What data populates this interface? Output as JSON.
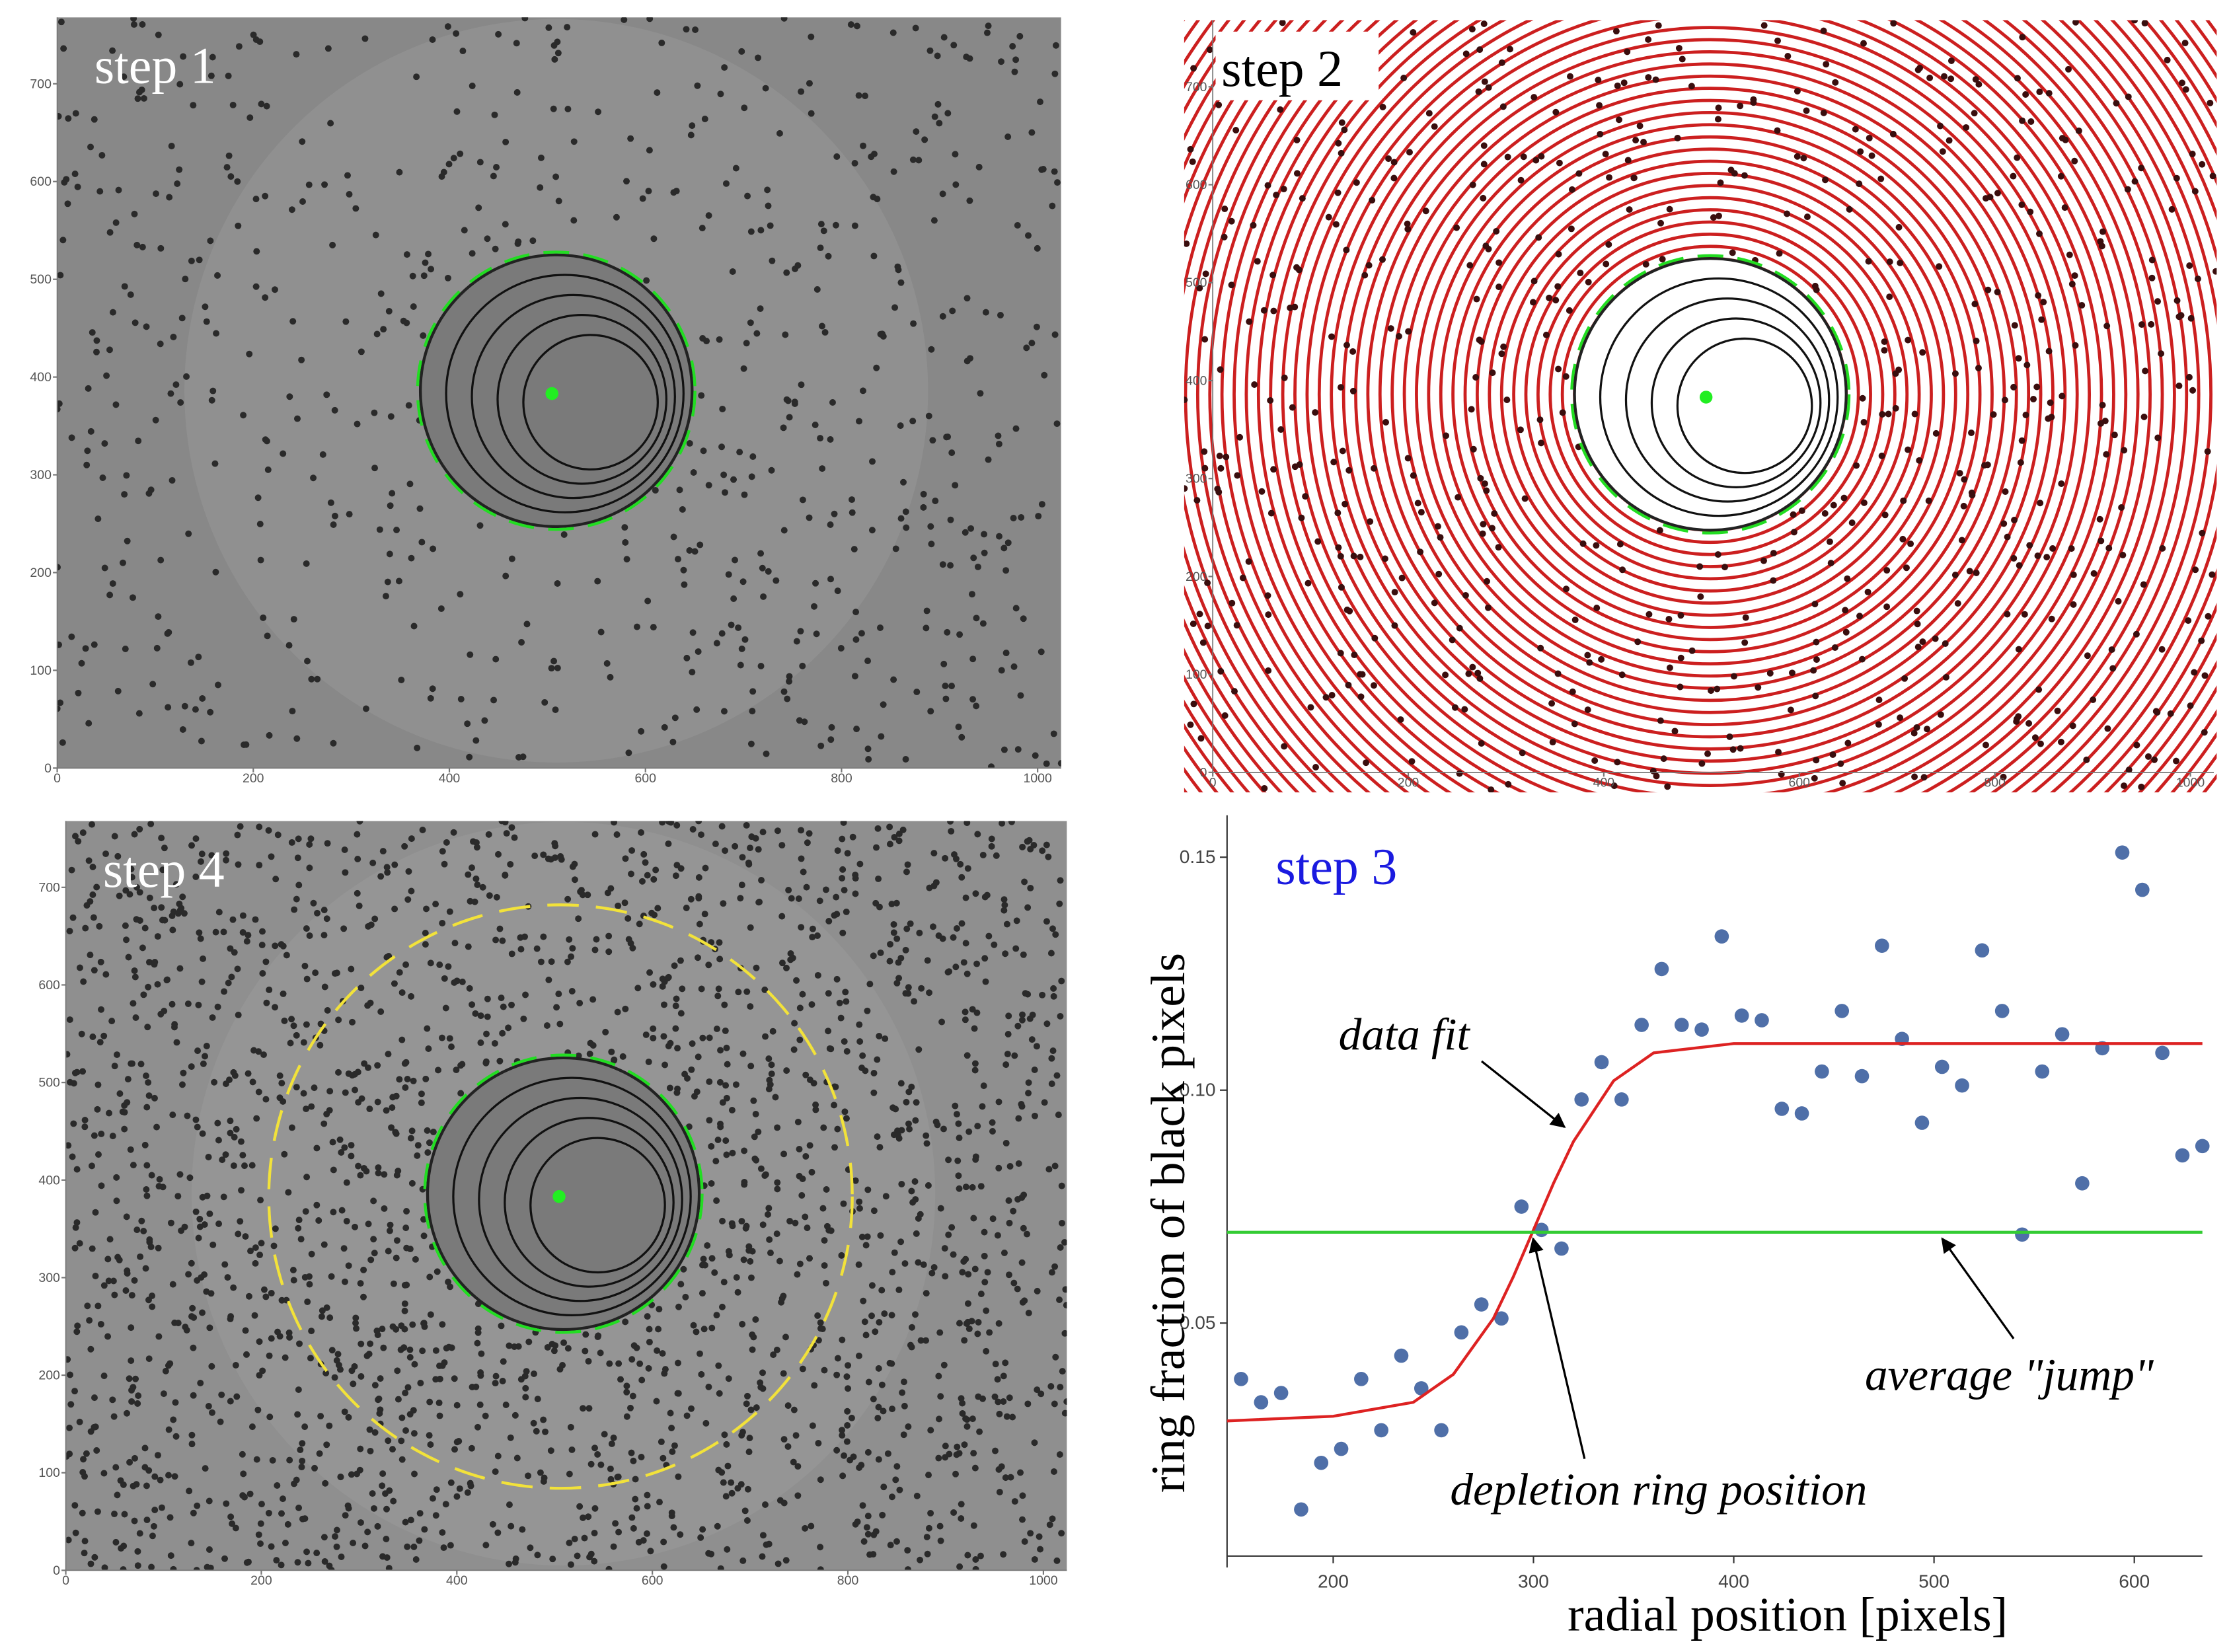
{
  "chart_data": [
    {
      "type": "image",
      "title": "step 1",
      "xlim": [
        0,
        1024
      ],
      "ylim": [
        0,
        768
      ],
      "xticks": [
        0,
        200,
        400,
        600,
        800,
        1000
      ],
      "yticks": [
        0,
        100,
        200,
        300,
        400,
        500,
        600,
        700
      ]
    },
    {
      "type": "image",
      "title": "step 2",
      "xlim": [
        0,
        1024
      ],
      "ylim": [
        0,
        768
      ],
      "xticks": [
        0,
        200,
        400,
        600,
        800,
        1000
      ],
      "yticks": [
        0,
        100,
        200,
        300,
        400,
        500,
        600,
        700
      ]
    },
    {
      "type": "scatter",
      "title": "step 3",
      "x_label": "radial position [pixels]",
      "y_label": "ring fraction of black pixels",
      "xlim": [
        147,
        634
      ],
      "ylim": [
        0,
        0.159
      ],
      "xticks": [
        200,
        300,
        400,
        500,
        600
      ],
      "yticks": [
        0.05,
        {
          "value": 0.1,
          "label": "0.10"
        },
        0.15
      ],
      "series": [
        {
          "type": "scatter",
          "color": "#4f6fa8",
          "x": [
            154,
            164,
            174,
            184,
            194,
            204,
            214,
            224,
            234,
            244,
            254,
            264,
            274,
            284,
            294,
            304,
            314,
            324,
            334,
            344,
            354,
            364,
            374,
            384,
            394,
            404,
            414,
            424,
            434,
            444,
            454,
            464,
            474,
            484,
            494,
            504,
            514,
            524,
            534,
            544,
            554,
            564,
            574,
            584,
            594,
            604,
            614,
            624,
            634
          ],
          "values": [
            0.038,
            0.033,
            0.035,
            0.01,
            0.02,
            0.023,
            0.038,
            0.027,
            0.043,
            0.036,
            0.027,
            0.048,
            0.054,
            0.051,
            0.075,
            0.07,
            0.066,
            0.098,
            0.106,
            0.098,
            0.114,
            0.126,
            0.114,
            0.113,
            0.133,
            0.116,
            0.115,
            0.096,
            0.095,
            0.104,
            0.117,
            0.103,
            0.131,
            0.111,
            0.093,
            0.105,
            0.101,
            0.13,
            0.117,
            0.069,
            0.104,
            0.112,
            0.08,
            0.109,
            0.151,
            0.143,
            0.108,
            0.086,
            0.088
          ]
        },
        {
          "type": "line",
          "color": "#dd2222",
          "x": [
            147,
            200,
            240,
            260,
            280,
            290,
            300,
            310,
            320,
            340,
            360,
            400,
            500,
            634
          ],
          "values": [
            0.029,
            0.03,
            0.033,
            0.039,
            0.051,
            0.06,
            0.07,
            0.08,
            0.089,
            0.102,
            0.108,
            0.11,
            0.11,
            0.11
          ]
        },
        {
          "type": "line",
          "color": "#33cc33",
          "x": [
            147,
            634
          ],
          "values": [
            0.0695,
            0.0695
          ]
        }
      ],
      "annotations": [
        "data fit",
        "depletion ring position",
        "average \"jump\""
      ]
    },
    {
      "type": "image",
      "title": "step 4",
      "xlim": [
        0,
        1024
      ],
      "ylim": [
        0,
        768
      ],
      "xticks": [
        0,
        200,
        400,
        600,
        800,
        1000
      ],
      "yticks": [
        0,
        100,
        200,
        300,
        400,
        500,
        600,
        700
      ]
    }
  ]
}
